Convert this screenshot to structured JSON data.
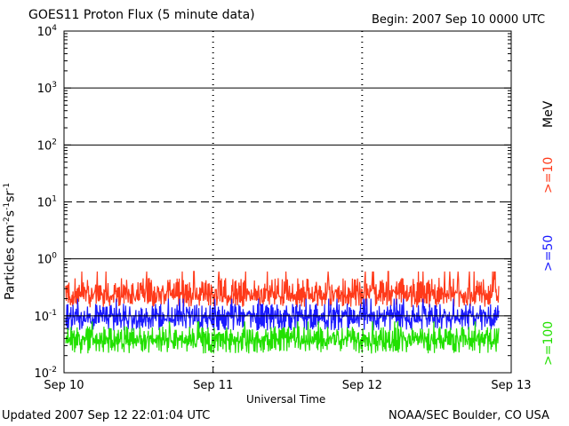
{
  "header": {
    "title": "GOES11 Proton Flux (5 minute data)",
    "begin": "Begin: 2007 Sep 10 0000 UTC"
  },
  "footer": {
    "updated": "Updated 2007 Sep 12 22:01:04 UTC",
    "credit": "NOAA/SEC Boulder, CO USA"
  },
  "legend": {
    "unit": "MeV",
    "entries": [
      {
        "label": ">=10",
        "color": "#ff3a1a"
      },
      {
        "label": ">=50",
        "color": "#1a1aff"
      },
      {
        "label": ">=100",
        "color": "#22e000"
      }
    ]
  },
  "chart_data": {
    "type": "line",
    "title": "GOES11 Proton Flux (5 minute data)",
    "xlabel": "Universal Time",
    "ylabel": "Particles cm-2s-1sr-1",
    "yscale": "log",
    "ylim": [
      0.01,
      10000
    ],
    "y_ticks": [
      {
        "base": "10",
        "exp": "-2"
      },
      {
        "base": "10",
        "exp": "-1"
      },
      {
        "base": "10",
        "exp": "0"
      },
      {
        "base": "10",
        "exp": "1"
      },
      {
        "base": "10",
        "exp": "2"
      },
      {
        "base": "10",
        "exp": "3"
      },
      {
        "base": "10",
        "exp": "4"
      }
    ],
    "x_ticks": [
      "Sep 10",
      "Sep 11",
      "Sep 12",
      "Sep 13"
    ],
    "x_range": [
      "2007-09-10 00:00",
      "2007-09-13 00:00"
    ],
    "data_end": "2007-09-12 22:00",
    "reference_lines": [
      {
        "value": 1,
        "style": "solid"
      },
      {
        "value": 10,
        "style": "dashed"
      },
      {
        "value": 100,
        "style": "solid"
      },
      {
        "value": 1000,
        "style": "solid"
      }
    ],
    "series": [
      {
        "name": ">=10 MeV",
        "color": "#ff3a1a",
        "typical": 0.25,
        "min": 0.13,
        "max": 0.6
      },
      {
        "name": ">=50 MeV",
        "color": "#1a1aff",
        "typical": 0.1,
        "min": 0.05,
        "max": 0.2
      },
      {
        "name": ">=100 MeV",
        "color": "#22e000",
        "typical": 0.04,
        "min": 0.02,
        "max": 0.08
      }
    ]
  }
}
